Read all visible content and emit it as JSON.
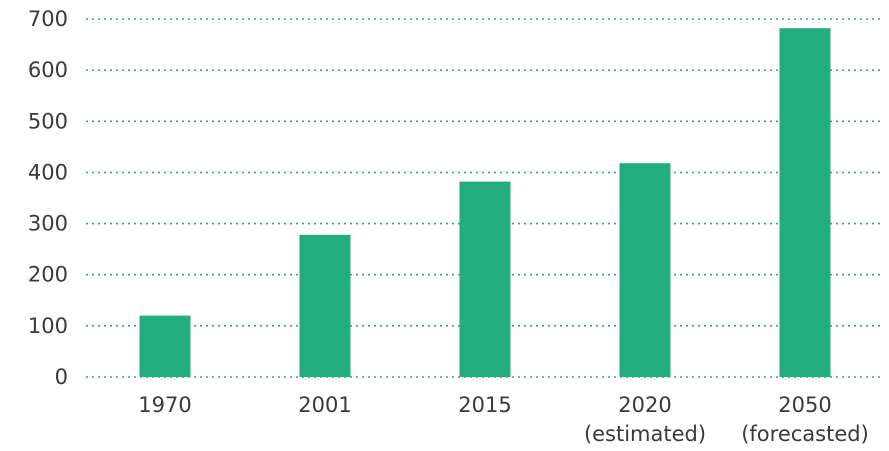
{
  "chart_data": {
    "type": "bar",
    "title": "",
    "xlabel": "",
    "ylabel": "",
    "categories": [
      "1970",
      "2001",
      "2015",
      "2020",
      "2050"
    ],
    "category_sublabels": [
      "",
      "",
      "",
      "(estimated)",
      "(forecasted)"
    ],
    "values": [
      120,
      278,
      382,
      418,
      682
    ],
    "ylim": [
      0,
      700
    ],
    "yticks": [
      0,
      100,
      200,
      300,
      400,
      500,
      600,
      700
    ],
    "grid": true,
    "legend": "none",
    "bar_color": "#21ae7a",
    "grid_color": "#27ae78"
  }
}
